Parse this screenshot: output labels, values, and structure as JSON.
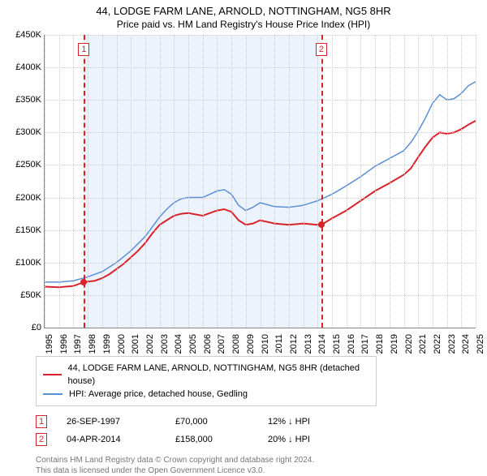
{
  "title": "44, LODGE FARM LANE, ARNOLD, NOTTINGHAM, NG5 8HR",
  "subtitle": "Price paid vs. HM Land Registry's House Price Index (HPI)",
  "chart": {
    "type": "line",
    "background_color": "#ffffff",
    "grid_color": "#cccccc",
    "axis_color": "#888888",
    "shade_color": "rgba(200,220,245,0.35)",
    "shade_ranges": [
      {
        "start_year": 1997.74,
        "end_year": 2014.26
      }
    ],
    "xlim": [
      1995,
      2025
    ],
    "ylim": [
      0,
      450000
    ],
    "ytick_step": 50000,
    "yticks": [
      "£0",
      "£50K",
      "£100K",
      "£150K",
      "£200K",
      "£250K",
      "£300K",
      "£350K",
      "£400K",
      "£450K"
    ],
    "xticks": [
      1995,
      1996,
      1997,
      1998,
      1999,
      2000,
      2001,
      2002,
      2003,
      2004,
      2005,
      2006,
      2007,
      2008,
      2009,
      2010,
      2011,
      2012,
      2013,
      2014,
      2015,
      2016,
      2017,
      2018,
      2019,
      2020,
      2021,
      2022,
      2023,
      2024,
      2025
    ],
    "markers": [
      {
        "n": "1",
        "year": 1997.74,
        "price": 70000,
        "color": "#d8232a"
      },
      {
        "n": "2",
        "year": 2014.26,
        "price": 158000,
        "color": "#d8232a"
      }
    ],
    "series": [
      {
        "name": "price_paid",
        "color": "#d8232a",
        "line_width": 2,
        "points": [
          [
            1995.0,
            63000
          ],
          [
            1996.0,
            62000
          ],
          [
            1997.0,
            64000
          ],
          [
            1997.74,
            70000
          ],
          [
            1998.5,
            72000
          ],
          [
            1999.0,
            76000
          ],
          [
            1999.5,
            82000
          ],
          [
            2000.0,
            90000
          ],
          [
            2000.5,
            98000
          ],
          [
            2001.0,
            108000
          ],
          [
            2001.5,
            118000
          ],
          [
            2002.0,
            130000
          ],
          [
            2002.5,
            145000
          ],
          [
            2003.0,
            158000
          ],
          [
            2003.5,
            165000
          ],
          [
            2004.0,
            172000
          ],
          [
            2004.5,
            175000
          ],
          [
            2005.0,
            176000
          ],
          [
            2006.0,
            172000
          ],
          [
            2007.0,
            180000
          ],
          [
            2007.5,
            182000
          ],
          [
            2008.0,
            178000
          ],
          [
            2008.5,
            165000
          ],
          [
            2009.0,
            158000
          ],
          [
            2009.5,
            160000
          ],
          [
            2010.0,
            165000
          ],
          [
            2011.0,
            160000
          ],
          [
            2012.0,
            158000
          ],
          [
            2013.0,
            160000
          ],
          [
            2014.0,
            158000
          ],
          [
            2014.26,
            158000
          ],
          [
            2015.0,
            168000
          ],
          [
            2016.0,
            180000
          ],
          [
            2017.0,
            195000
          ],
          [
            2018.0,
            210000
          ],
          [
            2019.0,
            222000
          ],
          [
            2020.0,
            235000
          ],
          [
            2020.5,
            245000
          ],
          [
            2021.0,
            262000
          ],
          [
            2021.5,
            278000
          ],
          [
            2022.0,
            292000
          ],
          [
            2022.5,
            300000
          ],
          [
            2023.0,
            298000
          ],
          [
            2023.5,
            300000
          ],
          [
            2024.0,
            305000
          ],
          [
            2024.5,
            312000
          ],
          [
            2025.0,
            318000
          ]
        ]
      },
      {
        "name": "hpi",
        "color": "#5a8fd6",
        "line_width": 1.5,
        "points": [
          [
            1995.0,
            70000
          ],
          [
            1996.0,
            70000
          ],
          [
            1997.0,
            72000
          ],
          [
            1998.0,
            78000
          ],
          [
            1999.0,
            86000
          ],
          [
            2000.0,
            100000
          ],
          [
            2001.0,
            118000
          ],
          [
            2002.0,
            140000
          ],
          [
            2002.5,
            155000
          ],
          [
            2003.0,
            170000
          ],
          [
            2003.5,
            182000
          ],
          [
            2004.0,
            192000
          ],
          [
            2004.5,
            198000
          ],
          [
            2005.0,
            200000
          ],
          [
            2006.0,
            200000
          ],
          [
            2007.0,
            210000
          ],
          [
            2007.5,
            212000
          ],
          [
            2008.0,
            205000
          ],
          [
            2008.5,
            188000
          ],
          [
            2009.0,
            180000
          ],
          [
            2009.5,
            185000
          ],
          [
            2010.0,
            192000
          ],
          [
            2011.0,
            186000
          ],
          [
            2012.0,
            185000
          ],
          [
            2013.0,
            188000
          ],
          [
            2014.0,
            195000
          ],
          [
            2015.0,
            205000
          ],
          [
            2016.0,
            218000
          ],
          [
            2017.0,
            232000
          ],
          [
            2018.0,
            248000
          ],
          [
            2019.0,
            260000
          ],
          [
            2020.0,
            272000
          ],
          [
            2020.5,
            285000
          ],
          [
            2021.0,
            302000
          ],
          [
            2021.5,
            322000
          ],
          [
            2022.0,
            345000
          ],
          [
            2022.5,
            358000
          ],
          [
            2023.0,
            350000
          ],
          [
            2023.5,
            352000
          ],
          [
            2024.0,
            360000
          ],
          [
            2024.5,
            372000
          ],
          [
            2025.0,
            378000
          ]
        ]
      }
    ]
  },
  "legend": {
    "items": [
      {
        "color": "#d8232a",
        "label": "44, LODGE FARM LANE, ARNOLD, NOTTINGHAM, NG5 8HR (detached house)"
      },
      {
        "color": "#5a8fd6",
        "label": "HPI: Average price, detached house, Gedling"
      }
    ]
  },
  "sales": [
    {
      "n": "1",
      "color": "#d8232a",
      "date": "26-SEP-1997",
      "price": "£70,000",
      "diff": "12% ↓ HPI"
    },
    {
      "n": "2",
      "color": "#d8232a",
      "date": "04-APR-2014",
      "price": "£158,000",
      "diff": "20% ↓ HPI"
    }
  ],
  "footer": {
    "line1": "Contains HM Land Registry data © Crown copyright and database right 2024.",
    "line2": "This data is licensed under the Open Government Licence v3.0."
  }
}
